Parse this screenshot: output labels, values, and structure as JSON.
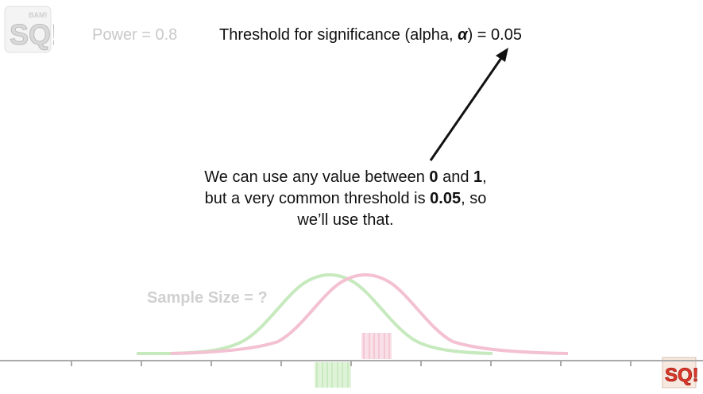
{
  "logo": {
    "text": "SQ!",
    "small_text": "BAM!"
  },
  "header": {
    "power_text": "Power = 0.8",
    "threshold_prefix": "Threshold for significance (alpha, ",
    "alpha_symbol": "α",
    "threshold_suffix": ") = 0.05"
  },
  "explanation": {
    "line1_a": "We can use any value between ",
    "line1_b0": "0",
    "line1_c": " and ",
    "line1_b1": "1",
    "line1_d": ",",
    "line2_a": "but a very common threshold is ",
    "line2_b": "0.05",
    "line2_c": ", so",
    "line3": "we’ll use that."
  },
  "sample_size_text": "Sample Size = ?",
  "colors": {
    "green_curve": "#c6e9bd",
    "pink_curve": "#f3c1d1",
    "axis": "#aaaaaa",
    "arrow": "#111111",
    "faded_text": "#c9c9c9"
  }
}
